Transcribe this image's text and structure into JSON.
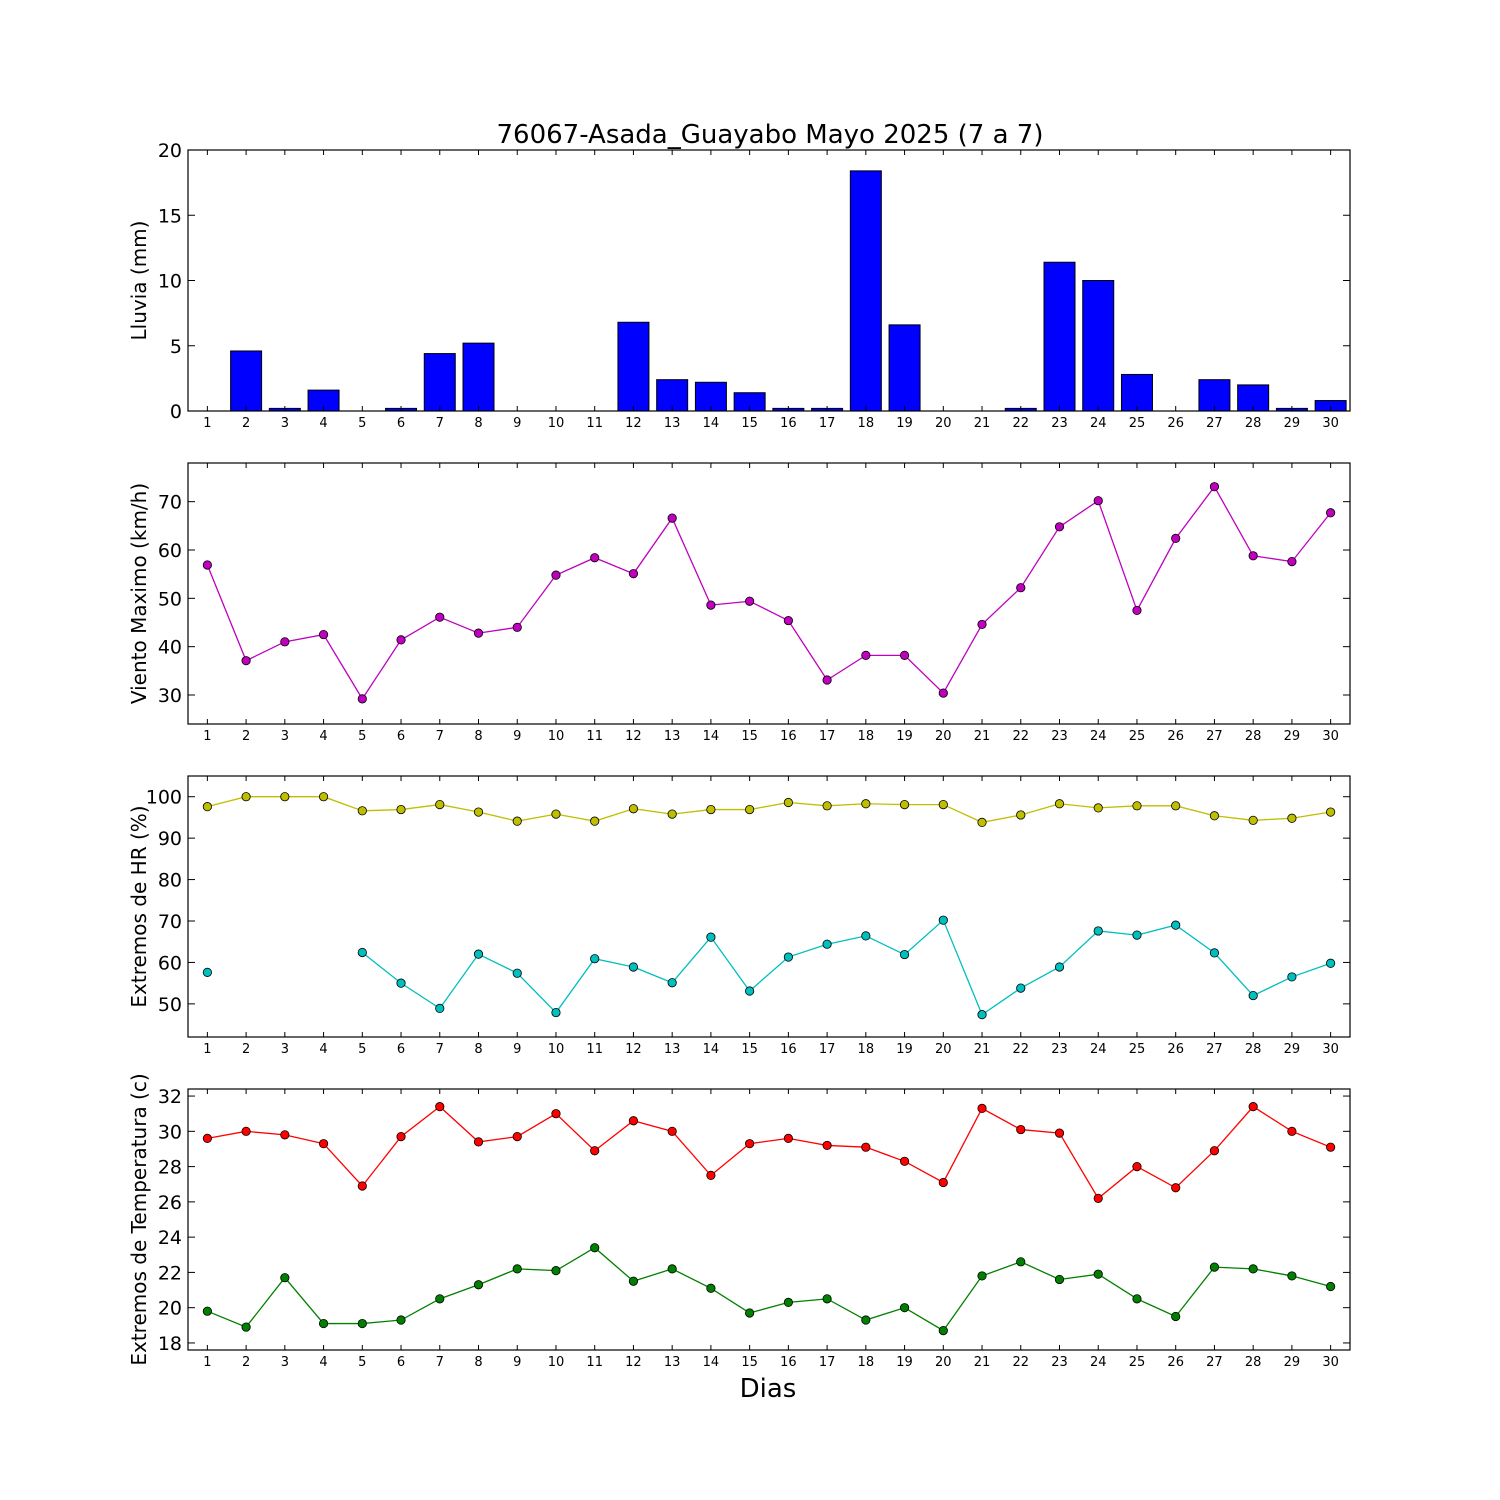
{
  "figure": {
    "title": "76067-Asada_Guayabo Mayo 2025  (7 a 7)",
    "xlabel": "Dias"
  },
  "chart_data": [
    {
      "type": "bar",
      "ylabel": "Lluvia (mm)",
      "ylim": [
        0,
        20
      ],
      "yticks": [
        0,
        5,
        10,
        15,
        20
      ],
      "color": "#0000ff",
      "categories": [
        1,
        2,
        3,
        4,
        5,
        6,
        7,
        8,
        9,
        10,
        11,
        12,
        13,
        14,
        15,
        16,
        17,
        18,
        19,
        20,
        21,
        22,
        23,
        24,
        25,
        26,
        27,
        28,
        29,
        30
      ],
      "values": [
        0,
        4.6,
        0.2,
        1.6,
        0,
        0.2,
        4.4,
        5.2,
        0,
        0,
        0,
        6.8,
        2.4,
        2.2,
        1.4,
        0.2,
        0.2,
        18.4,
        6.6,
        0,
        0,
        0.2,
        11.4,
        10,
        2.8,
        0,
        2.4,
        2,
        0.2,
        0.8
      ]
    },
    {
      "type": "line",
      "ylabel": "Viento Maximo (km/h)",
      "ylim": [
        24,
        78
      ],
      "yticks": [
        30,
        40,
        50,
        60,
        70
      ],
      "x": [
        1,
        2,
        3,
        4,
        5,
        6,
        7,
        8,
        9,
        10,
        11,
        12,
        13,
        14,
        15,
        16,
        17,
        18,
        19,
        20,
        21,
        22,
        23,
        24,
        25,
        26,
        27,
        28,
        29,
        30
      ],
      "series": [
        {
          "color": "#bf00bf",
          "values": [
            56.9,
            37.1,
            41.0,
            42.5,
            29.2,
            41.4,
            46.1,
            42.8,
            44.0,
            54.8,
            58.4,
            55.1,
            66.6,
            48.6,
            49.4,
            45.4,
            33.1,
            38.2,
            38.2,
            30.4,
            44.6,
            52.2,
            64.8,
            70.2,
            47.5,
            62.4,
            73.1,
            58.8,
            57.6,
            67.7
          ]
        }
      ]
    },
    {
      "type": "line",
      "ylabel": "Extremos de HR (%)",
      "ylim": [
        42,
        105
      ],
      "yticks": [
        50,
        60,
        70,
        80,
        90,
        100
      ],
      "x": [
        1,
        2,
        3,
        4,
        5,
        6,
        7,
        8,
        9,
        10,
        11,
        12,
        13,
        14,
        15,
        16,
        17,
        18,
        19,
        20,
        21,
        22,
        23,
        24,
        25,
        26,
        27,
        28,
        29,
        30
      ],
      "series": [
        {
          "color": "#bfbf00",
          "values": [
            97.6,
            100,
            100,
            100,
            96.6,
            96.9,
            98.1,
            96.3,
            94.1,
            95.8,
            94.1,
            97.1,
            95.8,
            96.9,
            96.9,
            98.6,
            97.8,
            98.3,
            98.1,
            98.1,
            93.8,
            95.6,
            98.3,
            97.3,
            97.8,
            97.8,
            95.4,
            94.3,
            94.8,
            96.3
          ]
        },
        {
          "color": "#00bfbf",
          "values": [
            57.6,
            null,
            null,
            null,
            62.4,
            55.0,
            48.9,
            62.0,
            57.4,
            47.9,
            60.9,
            58.9,
            55.1,
            66.1,
            53.1,
            61.3,
            64.4,
            66.4,
            61.9,
            70.2,
            47.4,
            53.8,
            58.9,
            67.6,
            66.6,
            69.0,
            62.3,
            52.0,
            56.5,
            59.8
          ]
        }
      ]
    },
    {
      "type": "line",
      "ylabel": "Extremos de Temperatura (c)",
      "ylim": [
        17.6,
        32.4
      ],
      "yticks": [
        18,
        20,
        22,
        24,
        26,
        28,
        30,
        32
      ],
      "x": [
        1,
        2,
        3,
        4,
        5,
        6,
        7,
        8,
        9,
        10,
        11,
        12,
        13,
        14,
        15,
        16,
        17,
        18,
        19,
        20,
        21,
        22,
        23,
        24,
        25,
        26,
        27,
        28,
        29,
        30
      ],
      "series": [
        {
          "color": "#ff0000",
          "values": [
            29.6,
            30.0,
            29.8,
            29.3,
            26.9,
            29.7,
            31.4,
            29.4,
            29.7,
            31.0,
            28.9,
            30.6,
            30.0,
            27.5,
            29.3,
            29.6,
            29.2,
            29.1,
            28.3,
            27.1,
            31.3,
            30.1,
            29.9,
            26.2,
            28.0,
            26.8,
            28.9,
            31.4,
            30.0,
            29.1
          ]
        },
        {
          "color": "#007f00",
          "values": [
            19.8,
            18.9,
            21.7,
            19.1,
            19.1,
            19.3,
            20.5,
            21.3,
            22.2,
            22.1,
            23.4,
            21.5,
            22.2,
            21.1,
            19.7,
            20.3,
            20.5,
            19.3,
            20.0,
            18.7,
            21.8,
            22.6,
            21.6,
            21.9,
            20.5,
            19.5,
            22.3,
            22.2,
            21.8,
            21.2
          ]
        }
      ]
    }
  ]
}
